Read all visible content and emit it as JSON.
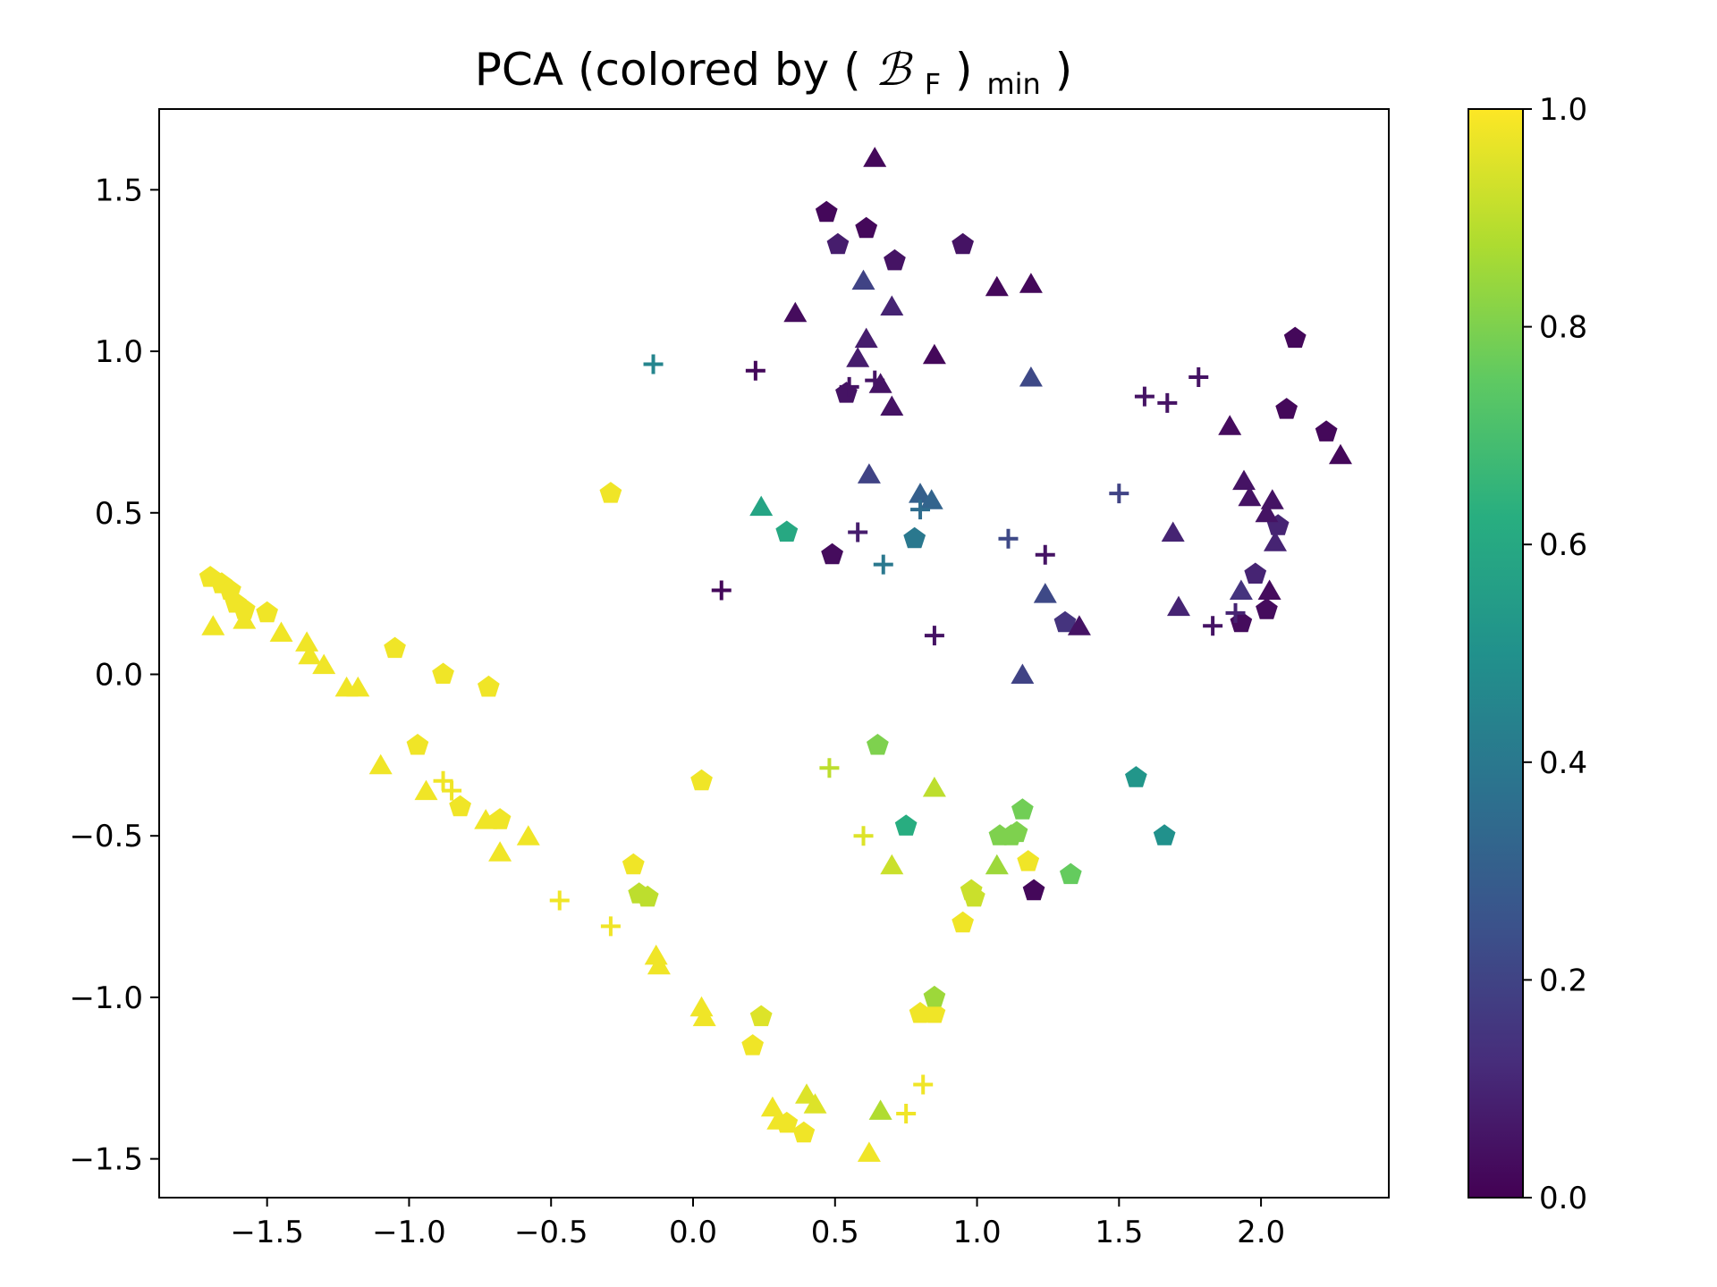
{
  "chart_data": {
    "type": "scatter",
    "title": {
      "prefix": "PCA (colored by (",
      "symbol": "ℬ",
      "symbol_sub": "F",
      "close": ")",
      "sub": "min",
      "suffix": ")"
    },
    "xlabel": "",
    "ylabel": "",
    "xlim": [
      -1.88,
      2.45
    ],
    "ylim": [
      -1.62,
      1.75
    ],
    "x_ticks": [
      -1.5,
      -1.0,
      -0.5,
      0.0,
      0.5,
      1.0,
      1.5,
      2.0
    ],
    "x_tick_labels": [
      "−1.5",
      "−1.0",
      "−0.5",
      "0.0",
      "0.5",
      "1.0",
      "1.5",
      "2.0"
    ],
    "y_ticks": [
      -1.5,
      -1.0,
      -0.5,
      0.0,
      0.5,
      1.0,
      1.5
    ],
    "y_tick_labels": [
      "−1.5",
      "−1.0",
      "−0.5",
      "0.0",
      "0.5",
      "1.0",
      "1.5"
    ],
    "grid": false,
    "colorbar": {
      "colormap": "viridis",
      "range": [
        0.0,
        1.0
      ],
      "ticks": [
        0.0,
        0.2,
        0.4,
        0.6,
        0.8,
        1.0
      ],
      "tick_labels": [
        "0.0",
        "0.2",
        "0.4",
        "0.6",
        "0.8",
        "1.0"
      ]
    },
    "series": [
      {
        "marker": "pentagon",
        "points": [
          [
            0.47,
            1.43,
            0.02
          ],
          [
            0.61,
            1.38,
            0.02
          ],
          [
            0.51,
            1.33,
            0.08
          ],
          [
            0.71,
            1.28,
            0.05
          ],
          [
            0.95,
            1.33,
            0.05
          ],
          [
            2.12,
            1.04,
            0.02
          ],
          [
            0.54,
            0.87,
            0.05
          ],
          [
            2.09,
            0.82,
            0.02
          ],
          [
            2.23,
            0.75,
            0.02
          ],
          [
            0.49,
            0.37,
            0.03
          ],
          [
            1.98,
            0.31,
            0.1
          ],
          [
            2.06,
            0.46,
            0.1
          ],
          [
            1.93,
            0.16,
            0.03
          ],
          [
            2.02,
            0.2,
            0.03
          ],
          [
            1.31,
            0.16,
            0.15
          ],
          [
            1.2,
            -0.67,
            0.02
          ],
          [
            -0.29,
            0.56,
            0.98
          ],
          [
            -1.7,
            0.3,
            0.98
          ],
          [
            -1.66,
            0.28,
            0.98
          ],
          [
            -1.63,
            0.26,
            0.98
          ],
          [
            -1.61,
            0.22,
            0.98
          ],
          [
            -1.58,
            0.2,
            0.98
          ],
          [
            -1.5,
            0.19,
            0.98
          ],
          [
            -1.05,
            0.08,
            0.98
          ],
          [
            -0.88,
            0.0,
            0.98
          ],
          [
            -0.72,
            -0.04,
            0.98
          ],
          [
            -0.97,
            -0.22,
            0.98
          ],
          [
            -0.82,
            -0.41,
            0.98
          ],
          [
            -0.68,
            -0.45,
            0.98
          ],
          [
            0.03,
            -0.33,
            0.98
          ],
          [
            -0.21,
            -0.59,
            0.98
          ],
          [
            -0.19,
            -0.68,
            0.9
          ],
          [
            -0.16,
            -0.69,
            0.9
          ],
          [
            0.24,
            -1.06,
            0.95
          ],
          [
            0.21,
            -1.15,
            0.98
          ],
          [
            0.39,
            -1.42,
            0.98
          ],
          [
            0.33,
            -1.39,
            0.98
          ],
          [
            0.8,
            -1.05,
            0.98
          ],
          [
            0.85,
            -1.05,
            0.98
          ],
          [
            0.85,
            -1.0,
            0.85
          ],
          [
            0.95,
            -0.77,
            0.98
          ],
          [
            0.98,
            -0.67,
            0.92
          ],
          [
            0.99,
            -0.69,
            0.92
          ],
          [
            1.18,
            -0.58,
            0.98
          ],
          [
            0.65,
            -0.22,
            0.8
          ],
          [
            1.08,
            -0.5,
            0.8
          ],
          [
            1.12,
            -0.5,
            0.8
          ],
          [
            1.14,
            -0.49,
            0.8
          ],
          [
            1.16,
            -0.42,
            0.78
          ],
          [
            1.33,
            -0.62,
            0.76
          ],
          [
            0.75,
            -0.47,
            0.62
          ],
          [
            0.33,
            0.44,
            0.6
          ],
          [
            0.78,
            0.42,
            0.4
          ],
          [
            1.56,
            -0.32,
            0.52
          ],
          [
            1.66,
            -0.5,
            0.5
          ]
        ]
      },
      {
        "marker": "triangle",
        "points": [
          [
            0.64,
            1.6,
            0.02
          ],
          [
            0.6,
            1.22,
            0.2
          ],
          [
            0.7,
            1.14,
            0.1
          ],
          [
            0.36,
            1.12,
            0.03
          ],
          [
            1.07,
            1.2,
            0.02
          ],
          [
            1.19,
            1.21,
            0.02
          ],
          [
            0.61,
            1.04,
            0.08
          ],
          [
            0.58,
            0.98,
            0.08
          ],
          [
            0.85,
            0.99,
            0.02
          ],
          [
            1.19,
            0.92,
            0.22
          ],
          [
            0.66,
            0.9,
            0.05
          ],
          [
            0.7,
            0.83,
            0.05
          ],
          [
            1.89,
            0.77,
            0.03
          ],
          [
            2.28,
            0.68,
            0.02
          ],
          [
            0.62,
            0.62,
            0.2
          ],
          [
            1.94,
            0.6,
            0.05
          ],
          [
            1.96,
            0.55,
            0.05
          ],
          [
            2.04,
            0.54,
            0.05
          ],
          [
            2.02,
            0.5,
            0.05
          ],
          [
            2.05,
            0.41,
            0.1
          ],
          [
            1.69,
            0.44,
            0.1
          ],
          [
            1.71,
            0.21,
            0.1
          ],
          [
            1.93,
            0.26,
            0.15
          ],
          [
            2.03,
            0.26,
            0.03
          ],
          [
            1.36,
            0.15,
            0.05
          ],
          [
            1.24,
            0.25,
            0.22
          ],
          [
            1.16,
            0.0,
            0.2
          ],
          [
            0.8,
            0.56,
            0.3
          ],
          [
            0.84,
            0.54,
            0.32
          ],
          [
            0.24,
            0.52,
            0.58
          ],
          [
            -1.69,
            0.15,
            0.98
          ],
          [
            -1.58,
            0.17,
            0.98
          ],
          [
            -1.45,
            0.13,
            0.98
          ],
          [
            -1.36,
            0.1,
            0.98
          ],
          [
            -1.35,
            0.06,
            0.98
          ],
          [
            -1.3,
            0.03,
            0.98
          ],
          [
            -1.22,
            -0.04,
            0.98
          ],
          [
            -1.18,
            -0.04,
            0.98
          ],
          [
            -1.1,
            -0.28,
            0.98
          ],
          [
            -0.94,
            -0.36,
            0.98
          ],
          [
            -0.73,
            -0.45,
            0.98
          ],
          [
            -0.68,
            -0.55,
            0.98
          ],
          [
            -0.58,
            -0.5,
            0.98
          ],
          [
            -0.13,
            -0.87,
            0.98
          ],
          [
            -0.12,
            -0.9,
            0.98
          ],
          [
            0.03,
            -1.03,
            0.98
          ],
          [
            0.04,
            -1.06,
            0.98
          ],
          [
            0.28,
            -1.34,
            0.98
          ],
          [
            0.3,
            -1.38,
            0.98
          ],
          [
            0.4,
            -1.3,
            0.95
          ],
          [
            0.43,
            -1.33,
            0.95
          ],
          [
            0.62,
            -1.48,
            0.98
          ],
          [
            0.66,
            -1.35,
            0.88
          ],
          [
            0.7,
            -0.59,
            0.92
          ],
          [
            0.85,
            -0.35,
            0.9
          ],
          [
            1.07,
            -0.59,
            0.85
          ]
        ]
      },
      {
        "marker": "plus",
        "points": [
          [
            -0.14,
            0.96,
            0.45
          ],
          [
            0.22,
            0.94,
            0.02
          ],
          [
            0.55,
            0.89,
            0.05
          ],
          [
            0.64,
            0.91,
            0.05
          ],
          [
            1.59,
            0.86,
            0.05
          ],
          [
            1.67,
            0.84,
            0.05
          ],
          [
            1.78,
            0.92,
            0.05
          ],
          [
            1.5,
            0.56,
            0.2
          ],
          [
            0.8,
            0.51,
            0.35
          ],
          [
            0.58,
            0.44,
            0.08
          ],
          [
            0.67,
            0.34,
            0.4
          ],
          [
            1.11,
            0.42,
            0.22
          ],
          [
            1.24,
            0.37,
            0.05
          ],
          [
            0.1,
            0.26,
            0.02
          ],
          [
            0.85,
            0.12,
            0.05
          ],
          [
            1.83,
            0.15,
            0.05
          ],
          [
            1.91,
            0.19,
            0.1
          ],
          [
            -0.88,
            -0.33,
            0.98
          ],
          [
            -0.85,
            -0.36,
            0.98
          ],
          [
            -0.47,
            -0.7,
            0.98
          ],
          [
            -0.29,
            -0.78,
            0.98
          ],
          [
            0.48,
            -0.29,
            0.9
          ],
          [
            0.6,
            -0.5,
            0.95
          ],
          [
            0.75,
            -1.36,
            0.98
          ],
          [
            0.81,
            -1.27,
            0.98
          ]
        ]
      }
    ]
  }
}
